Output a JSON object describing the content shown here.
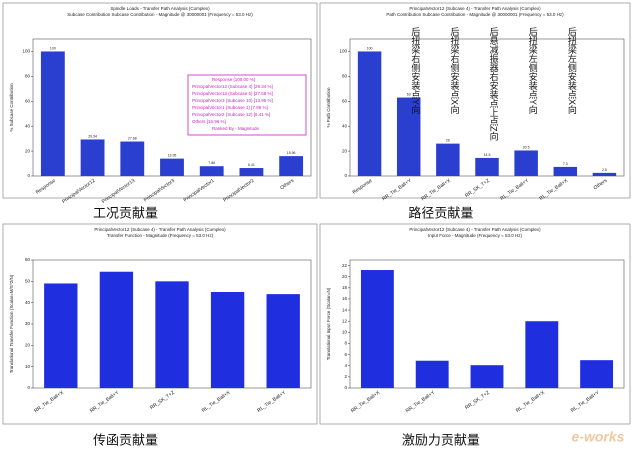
{
  "watermark": "e-works",
  "chart_data": [
    {
      "type": "bar",
      "title": "Spindle Loads  -  Transfer Path Analysis (Complex)",
      "subtitle": "Subcase Contribution Subcase Contribution - Magnitude @ 30000001 (Frequency = 53.0 Hz)",
      "ylabel": "% Subcase Contribution",
      "caption": "工况贡献量",
      "categories": [
        "Response",
        "PrincipalVector12",
        "PrincipalVector13",
        "PrincipalVector3",
        "PrincipalVector1",
        "PrincipalVector2",
        "Others"
      ],
      "values": [
        100,
        29.34,
        27.68,
        13.95,
        7.86,
        6.41,
        15.96
      ],
      "color": "#2a3fd0",
      "data_labels": true,
      "ylim": [
        0,
        110
      ],
      "yticks": [
        0,
        20,
        40,
        60,
        80,
        100
      ],
      "grid": false,
      "legend_box": [
        "Response [100.00 %]",
        "PrincipalVector12 (Subcase 4) [29.34 %]",
        "PrincipalVector13 (Subcase 5) [27.68 %]",
        "PrincipalVector3 (Subcase 10) [13.95 %]",
        "PrincipalVector1 (Subcase 1) [7.86 %]",
        "PrincipalVector2 (Subcase 12) [6.41 %]",
        "Others [15.96 %]",
        "Ranked By - Magnitude"
      ],
      "legend_color": "#d020c0"
    },
    {
      "type": "bar",
      "title": "PrincipalVector12 (Subcase 4)  -  Transfer Path Analysis (Complex)",
      "subtitle": "Path Contribution Subcase Contribution - Magnitude @ 30000001 (Frequency = 53.0 Hz)",
      "ylabel": "% Path Contribution",
      "caption": "路径贡献量",
      "categories": [
        "Response",
        "RR_Tie_Ball+Y",
        "RR_Tie_Ball+X",
        "RR_SK_T+Z",
        "RL_Tie_Ball+Y",
        "RL_Tie_Ball+X",
        "Others"
      ],
      "values": [
        100,
        63,
        26,
        14.5,
        20.5,
        7.3,
        2.5
      ],
      "color": "#2a3fd0",
      "data_labels": true,
      "ylim": [
        0,
        110
      ],
      "yticks": [
        0,
        20,
        40,
        60,
        80,
        100
      ],
      "grid": false,
      "annotations": [
        "后扭梁右侧安装点Y向",
        "后扭梁右侧安装点X向",
        "后悬减振器右安装点上点Z向",
        "后扭梁左侧安装点Y向",
        "后扭梁左侧安装点X向"
      ]
    },
    {
      "type": "bar",
      "title": "PrincipalVector12 (Subcase 4)  -  Transfer Path Analysis (Complex)",
      "subtitle": "Transfer Function - Magnitude (Frequency = 53.0 Hz)",
      "ylabel": "Translational Transfer Function (Scalar=M/S^2/N)",
      "caption": "传函贡献量",
      "categories": [
        "RR_Tie_Ball+X",
        "RR_Tie_Ball+Y",
        "RR_SK_T+Z",
        "RL_Tie_Ball+X",
        "RL_Tie_Ball+Y"
      ],
      "values": [
        49,
        54.5,
        50,
        45,
        44
      ],
      "color": "#1f2fe0",
      "data_labels": false,
      "ylim": [
        0,
        60
      ],
      "yticks": [
        0,
        10,
        20,
        30,
        40,
        50,
        60
      ],
      "grid": false
    },
    {
      "type": "bar",
      "title": "PrincipalVector12 (Subcase 4)  -  Transfer Path Analysis (Complex)",
      "subtitle": "Input Force - Magnitude (Frequency = 53.0 Hz)",
      "ylabel": "Translational Input Force (Scalar=N)",
      "caption": "激励力贡献量",
      "categories": [
        "RR_Tie_Ball+X",
        "RR_Tie_Ball+Y",
        "RR_SK_T+Z",
        "RL_Tie_Ball+X",
        "RL_Tie_Ball+Y"
      ],
      "values": [
        21.2,
        4.9,
        4.1,
        12,
        5
      ],
      "color": "#1f2fe0",
      "data_labels": false,
      "ylim": [
        0,
        23
      ],
      "yticks": [
        0,
        2,
        4,
        6,
        8,
        10,
        12,
        14,
        16,
        18,
        20,
        22
      ],
      "grid": false
    }
  ]
}
